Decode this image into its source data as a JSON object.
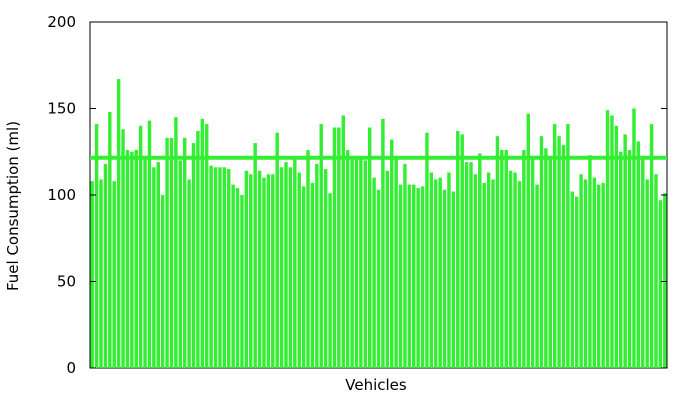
{
  "chart_data": {
    "type": "bar",
    "title": "",
    "xlabel": "Vehicles",
    "ylabel": "Fuel Consumption (ml)",
    "ylim": [
      0,
      200
    ],
    "yticks": [
      0,
      50,
      100,
      150,
      200
    ],
    "yticks_labels": [
      "0",
      "50",
      "100",
      "150",
      "200"
    ],
    "grid": false,
    "legend": "none",
    "bar_color": "#33ee33",
    "reference_line": {
      "value": 121.5,
      "color": "#33ee33"
    },
    "values": [
      108,
      141,
      109,
      118,
      148,
      108,
      167,
      138,
      126,
      125,
      126,
      140,
      121,
      143,
      116,
      119,
      100,
      133,
      133,
      145,
      120,
      133,
      109,
      130,
      137,
      144,
      141,
      117,
      116,
      116,
      116,
      115,
      106,
      104,
      100,
      114,
      112,
      130,
      114,
      110,
      112,
      112,
      136,
      116,
      119,
      116,
      121,
      113,
      105,
      126,
      107,
      118,
      141,
      115,
      101,
      139,
      139,
      146,
      126,
      122,
      122,
      122,
      120,
      139,
      110,
      103,
      144,
      114,
      132,
      122,
      106,
      118,
      106,
      106,
      104,
      105,
      136,
      113,
      109,
      110,
      103,
      113,
      102,
      137,
      135,
      119,
      119,
      112,
      124,
      107,
      113,
      109,
      134,
      126,
      126,
      114,
      113,
      108,
      126,
      147,
      121,
      106,
      134,
      127,
      122,
      141,
      134,
      129,
      141,
      102,
      99,
      112,
      109,
      123,
      110,
      106,
      107,
      149,
      146,
      140,
      125,
      135,
      126,
      150,
      131,
      122,
      109,
      141,
      112,
      97,
      101
    ]
  }
}
